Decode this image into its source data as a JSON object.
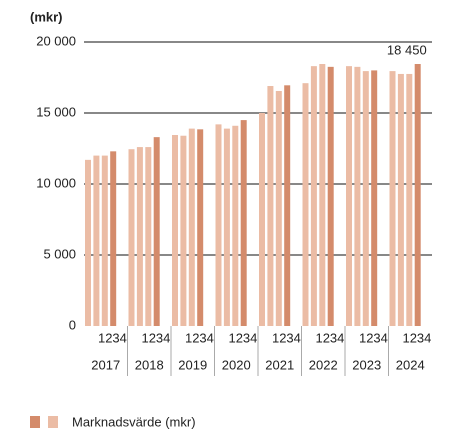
{
  "chart_data": {
    "type": "grouped-bar",
    "ylabel": "(mkr)",
    "groups": [
      "2017",
      "2018",
      "2019",
      "2020",
      "2021",
      "2022",
      "2023",
      "2024"
    ],
    "categories": [
      "1",
      "2",
      "3",
      "4"
    ],
    "colors": [
      "#ebbca5",
      "#ebbca5",
      "#ebbca5",
      "#d48b6b"
    ],
    "values": [
      [
        11700,
        12000,
        12000,
        12300
      ],
      [
        12450,
        12600,
        12600,
        13300
      ],
      [
        13450,
        13400,
        13900,
        13850
      ],
      [
        14200,
        13900,
        14100,
        14500
      ],
      [
        15000,
        16900,
        16550,
        16950
      ],
      [
        17100,
        18300,
        18450,
        18250
      ],
      [
        18300,
        18250,
        17950,
        18000
      ],
      [
        17950,
        17750,
        17750,
        18450
      ]
    ],
    "value_labels": [
      [
        null,
        null,
        null,
        null
      ],
      [
        null,
        null,
        null,
        null
      ],
      [
        null,
        null,
        null,
        null
      ],
      [
        null,
        null,
        null,
        null
      ],
      [
        null,
        null,
        null,
        null
      ],
      [
        null,
        null,
        null,
        null
      ],
      [
        null,
        null,
        null,
        null
      ],
      [
        null,
        null,
        null,
        "18 450"
      ]
    ],
    "ylim": [
      0,
      20000
    ],
    "yticks": [
      0,
      {
        "value": 5000,
        "label": "5 000"
      },
      {
        "value": 10000,
        "label": "10 000"
      },
      {
        "value": 15000,
        "label": "15 000"
      },
      {
        "value": 20000,
        "label": "20 000"
      }
    ],
    "grid": true,
    "legend": {
      "label": "Marknadsvärde (mkr)",
      "position": "bottom-left"
    }
  }
}
